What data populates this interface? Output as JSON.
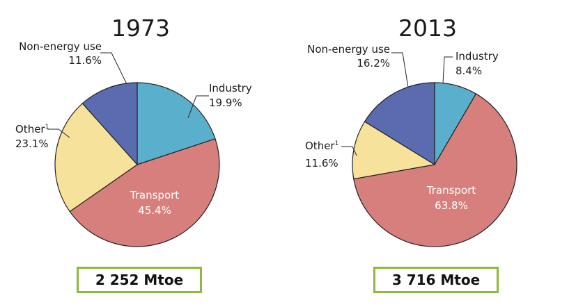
{
  "chart_data": [
    {
      "type": "pie",
      "title": "1973",
      "slices": [
        {
          "label": "Industry",
          "value": 19.9,
          "value_text": "19.9%",
          "color": "#5ab0cc"
        },
        {
          "label": "Transport",
          "value": 45.4,
          "value_text": "45.4%",
          "color": "#d77f7c"
        },
        {
          "label": "Other",
          "footnote": "1",
          "value": 23.1,
          "value_text": "23.1%",
          "color": "#f6e29a"
        },
        {
          "label": "Non-energy use",
          "value": 11.6,
          "value_text": "11.6%",
          "color": "#5a6bb0"
        }
      ],
      "total": "2 252 Mtoe"
    },
    {
      "type": "pie",
      "title": "2013",
      "slices": [
        {
          "label": "Industry",
          "value": 8.4,
          "value_text": "8.4%",
          "color": "#5ab0cc"
        },
        {
          "label": "Transport",
          "value": 63.8,
          "value_text": "63.8%",
          "color": "#d77f7c"
        },
        {
          "label": "Other",
          "footnote": "1",
          "value": 11.6,
          "value_text": "11.6%",
          "color": "#f6e29a"
        },
        {
          "label": "Non-energy use",
          "value": 16.2,
          "value_text": "16.2%",
          "color": "#5a6bb0"
        }
      ],
      "total": "3 716 Mtoe"
    }
  ]
}
